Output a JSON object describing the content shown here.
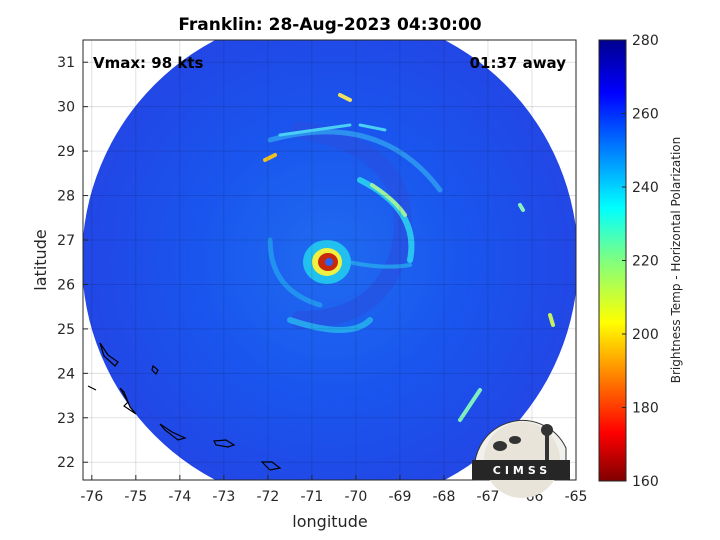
{
  "title": "Franklin: 28-Aug-2023 04:30:00",
  "vmax": "Vmax: 98 kts",
  "away": "01:37 away",
  "xlabel": "longitude",
  "ylabel": "latitude",
  "colorbar_label": "Brightness Temp - Horizontal Polarization",
  "logo_text": "CIMSS",
  "map": {
    "lon_range": [
      -76.2,
      -65
    ],
    "lat_range": [
      21.6,
      31.5
    ],
    "lon_ticks": [
      "-76",
      "-75",
      "-74",
      "-73",
      "-72",
      "-71",
      "-70",
      "-69",
      "-68",
      "-67",
      "-66",
      "-65"
    ],
    "lat_ticks": [
      "22",
      "23",
      "24",
      "25",
      "26",
      "27",
      "28",
      "29",
      "30",
      "31"
    ],
    "colorbar_ticks": [
      "160",
      "180",
      "200",
      "220",
      "240",
      "260",
      "280"
    ],
    "colorbar_range": [
      160,
      280
    ],
    "grid": true,
    "storm_center": {
      "lon": -70.6,
      "lat": 26.5
    },
    "colormap": "jet",
    "colors": {
      "background": "#1d4ef2",
      "eye": "#c62a0a"
    }
  }
}
